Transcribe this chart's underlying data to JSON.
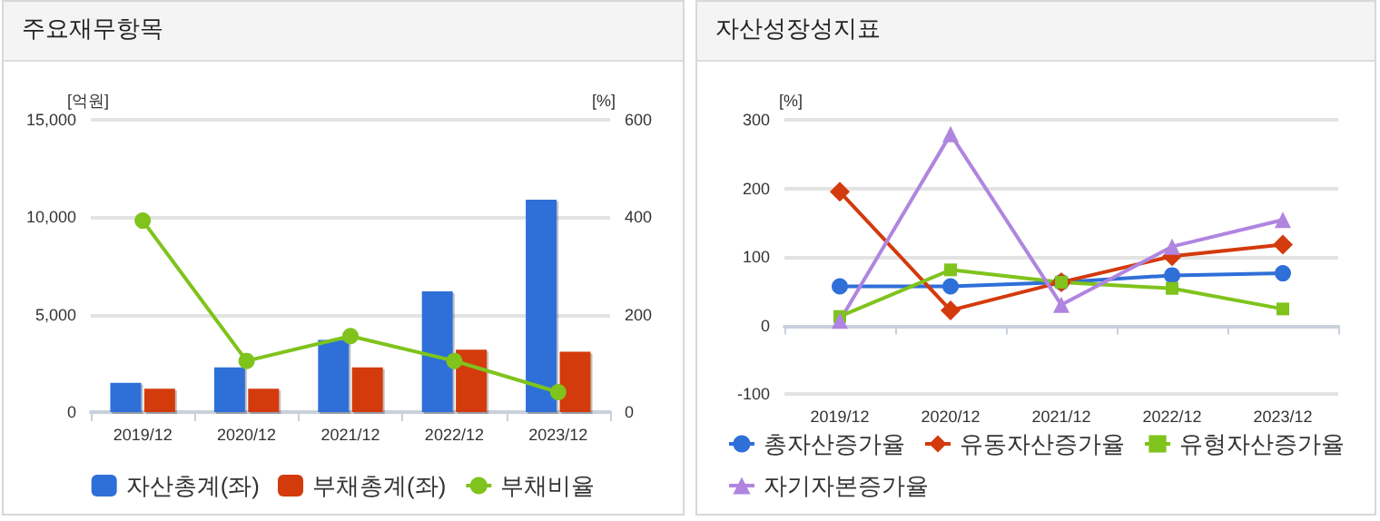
{
  "chart_data": [
    {
      "type": "bar",
      "title": "주요재무항목",
      "ylabel": "[억원]",
      "y2label": "[%]",
      "categories": [
        "2019/12",
        "2020/12",
        "2021/12",
        "2022/12",
        "2023/12"
      ],
      "series": [
        {
          "name": "자산총계(좌)",
          "color": "#2f6fd8",
          "values": [
            1500,
            2300,
            3700,
            6200,
            10900
          ]
        },
        {
          "name": "부채총계(좌)",
          "color": "#d33a0c",
          "values": [
            1200,
            1200,
            2300,
            3200,
            3100
          ]
        },
        {
          "name": "부채비율",
          "type": "line",
          "axis": "y2",
          "marker": "circle",
          "color": "#7fc31c",
          "values": [
            393,
            105,
            156,
            105,
            41
          ]
        }
      ],
      "ylim": [
        0,
        15000
      ],
      "yticks": [
        0,
        {
          "value": 5000,
          "label": "5,000"
        },
        {
          "value": 10000,
          "label": "10,000"
        },
        {
          "value": 15000,
          "label": "15,000"
        }
      ],
      "y2lim": [
        0,
        600
      ],
      "y2ticks": [
        0,
        200,
        400,
        600
      ],
      "grid": "y",
      "legend": "bottom"
    },
    {
      "type": "line",
      "title": "자산성장성지표",
      "ylabel": "[%]",
      "categories": [
        "2019/12",
        "2020/12",
        "2021/12",
        "2022/12",
        "2023/12"
      ],
      "series": [
        {
          "name": "총자산증가율",
          "marker": "circle",
          "color": "#2f6fd8",
          "values": [
            57,
            57,
            63,
            73,
            76
          ]
        },
        {
          "name": "유동자산증가율",
          "marker": "diamond",
          "color": "#d33a0c",
          "values": [
            195,
            22,
            63,
            101,
            118
          ]
        },
        {
          "name": "유형자산증가율",
          "marker": "square",
          "color": "#7fc31c",
          "values": [
            13,
            81,
            63,
            54,
            24
          ]
        },
        {
          "name": "자기자본증가율",
          "marker": "triangle",
          "color": "#b085e0",
          "values": [
            7,
            279,
            30,
            115,
            154
          ]
        }
      ],
      "ylim": [
        -100,
        300
      ],
      "yticks": [
        -100,
        0,
        100,
        200,
        300
      ],
      "grid": "y",
      "legend": "bottom"
    }
  ]
}
